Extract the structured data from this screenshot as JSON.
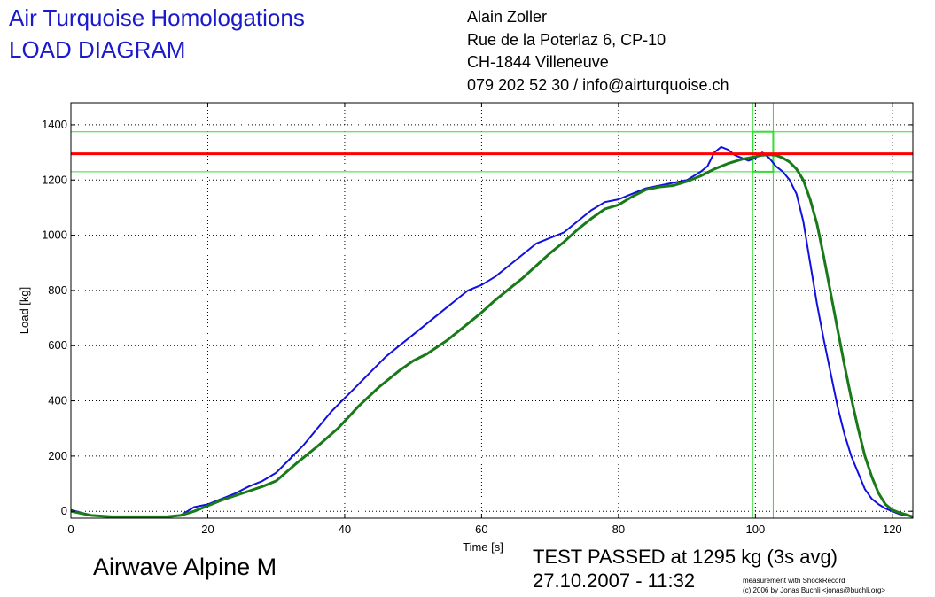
{
  "header": {
    "title_line1": "Air Turquoise Homologations",
    "title_line2": "LOAD DIAGRAM",
    "address": [
      "Alain Zoller",
      "Rue de la Poterlaz 6, CP-10",
      "CH-1844 Villeneuve",
      "079 202 52 30 / info@airturquoise.ch"
    ]
  },
  "footer": {
    "model": "Airwave Alpine M",
    "result_line1": "TEST PASSED at 1295 kg (3s avg)",
    "result_line2": "27.10.2007 - 11:32",
    "credit_line1": "measurement with ShockRecord",
    "credit_line2": "(c) 2006 by Jonas Buchli <jonas@buchli.org>"
  },
  "colors": {
    "raw": "#1010e0",
    "avg": "#1a7a1a",
    "threshold": "#ff0000",
    "band": "#33dd33",
    "title": "#1a1acc"
  },
  "chart_data": {
    "type": "line",
    "xlabel": "Time [s]",
    "ylabel": "Load [kg]",
    "xlim": [
      0,
      123
    ],
    "ylim": [
      -25,
      1480
    ],
    "xticks": [
      0,
      20,
      40,
      60,
      80,
      100,
      120
    ],
    "yticks": [
      0,
      200,
      400,
      600,
      800,
      1000,
      1200,
      1400
    ],
    "grid": true,
    "threshold": 1295,
    "band": {
      "y_low": 1230,
      "y_high": 1375,
      "x_low": 99.6,
      "x_high": 102.6
    },
    "series": [
      {
        "name": "",
        "role": "raw",
        "x": [
          0,
          3,
          6,
          10,
          14,
          16,
          17,
          18,
          20,
          22,
          24,
          26,
          28,
          30,
          32,
          34,
          36,
          38,
          40,
          42,
          44,
          46,
          48,
          50,
          52,
          54,
          56,
          58,
          60,
          62,
          64,
          66,
          68,
          70,
          72,
          74,
          76,
          78,
          80,
          82,
          84,
          86,
          88,
          90,
          92,
          93,
          94,
          95,
          96,
          97,
          98,
          99,
          100,
          101,
          102,
          103,
          104,
          105,
          106,
          107,
          108,
          109,
          110,
          111,
          112,
          113,
          114,
          115,
          116,
          117,
          118,
          119,
          120,
          121,
          122,
          123
        ],
        "y": [
          5,
          -15,
          -20,
          -20,
          -20,
          -15,
          0,
          15,
          25,
          45,
          65,
          90,
          110,
          140,
          190,
          240,
          300,
          360,
          410,
          460,
          510,
          560,
          600,
          640,
          680,
          720,
          760,
          800,
          820,
          850,
          890,
          930,
          970,
          990,
          1010,
          1050,
          1090,
          1120,
          1130,
          1150,
          1170,
          1180,
          1190,
          1200,
          1230,
          1250,
          1300,
          1320,
          1310,
          1290,
          1280,
          1270,
          1280,
          1300,
          1280,
          1250,
          1230,
          1200,
          1150,
          1050,
          900,
          750,
          620,
          500,
          380,
          280,
          200,
          140,
          80,
          45,
          25,
          10,
          0,
          -10,
          -15,
          -20
        ]
      },
      {
        "name": "",
        "role": "average",
        "x": [
          0,
          3,
          6,
          10,
          14,
          16,
          18,
          20,
          22,
          25,
          28,
          30,
          33,
          36,
          39,
          42,
          45,
          48,
          50,
          52,
          55,
          58,
          60,
          62,
          64,
          66,
          68,
          70,
          72,
          74,
          76,
          78,
          80,
          82,
          84,
          86,
          88,
          90,
          92,
          94,
          96,
          98,
          100,
          101,
          102,
          103,
          104,
          105,
          106,
          107,
          108,
          109,
          110,
          111,
          112,
          113,
          114,
          115,
          116,
          117,
          118,
          119,
          120,
          121,
          122,
          123
        ],
        "y": [
          0,
          -15,
          -20,
          -20,
          -20,
          -15,
          0,
          20,
          40,
          65,
          90,
          110,
          175,
          235,
          300,
          380,
          450,
          510,
          545,
          570,
          620,
          680,
          720,
          765,
          805,
          845,
          890,
          935,
          975,
          1020,
          1060,
          1095,
          1110,
          1140,
          1165,
          1175,
          1180,
          1195,
          1215,
          1240,
          1260,
          1275,
          1285,
          1290,
          1292,
          1290,
          1280,
          1265,
          1240,
          1200,
          1130,
          1040,
          920,
          790,
          660,
          530,
          410,
          300,
          200,
          125,
          65,
          25,
          5,
          -5,
          -12,
          -20
        ]
      }
    ]
  }
}
